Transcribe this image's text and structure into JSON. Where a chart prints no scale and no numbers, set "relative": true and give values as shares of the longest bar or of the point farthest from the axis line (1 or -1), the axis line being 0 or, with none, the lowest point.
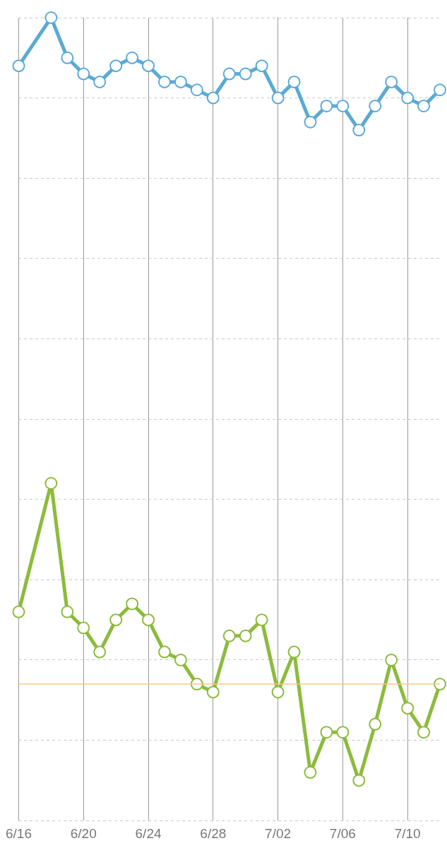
{
  "chart_data": {
    "type": "line",
    "relative": true,
    "grid": true,
    "marker": "circle",
    "legend": false,
    "categories": [
      "6/16",
      null,
      null,
      null,
      "6/20",
      null,
      null,
      null,
      "6/24",
      null,
      null,
      null,
      "6/28",
      null,
      null,
      null,
      "7/02",
      null,
      null,
      null,
      "7/06",
      null,
      null,
      null,
      "7/10",
      null,
      null
    ],
    "series": [
      {
        "color": "#5aaad6",
        "values": [
          0.94,
          null,
          1,
          0.95,
          0.93,
          0.92,
          0.94,
          0.95,
          0.94,
          0.92,
          0.92,
          0.91,
          0.9,
          0.93,
          0.93,
          0.94,
          0.9,
          0.92,
          0.87,
          0.89,
          0.89,
          0.86,
          0.89,
          0.92,
          0.9,
          0.89,
          0.91
        ]
      },
      {
        "color": "#8cbb3c",
        "values": [
          0.26,
          null,
          0.42,
          0.26,
          0.24,
          0.21,
          0.25,
          0.27,
          0.25,
          0.21,
          0.2,
          0.17,
          0.16,
          0.23,
          0.23,
          0.25,
          0.16,
          0.21,
          0.06,
          0.11,
          0.11,
          0.05,
          0.12,
          0.2,
          0.14,
          0.11,
          0.17
        ]
      }
    ],
    "ref_lines": [
      {
        "axis": "y",
        "value": 0.17,
        "color": "#f3c98b"
      }
    ]
  }
}
